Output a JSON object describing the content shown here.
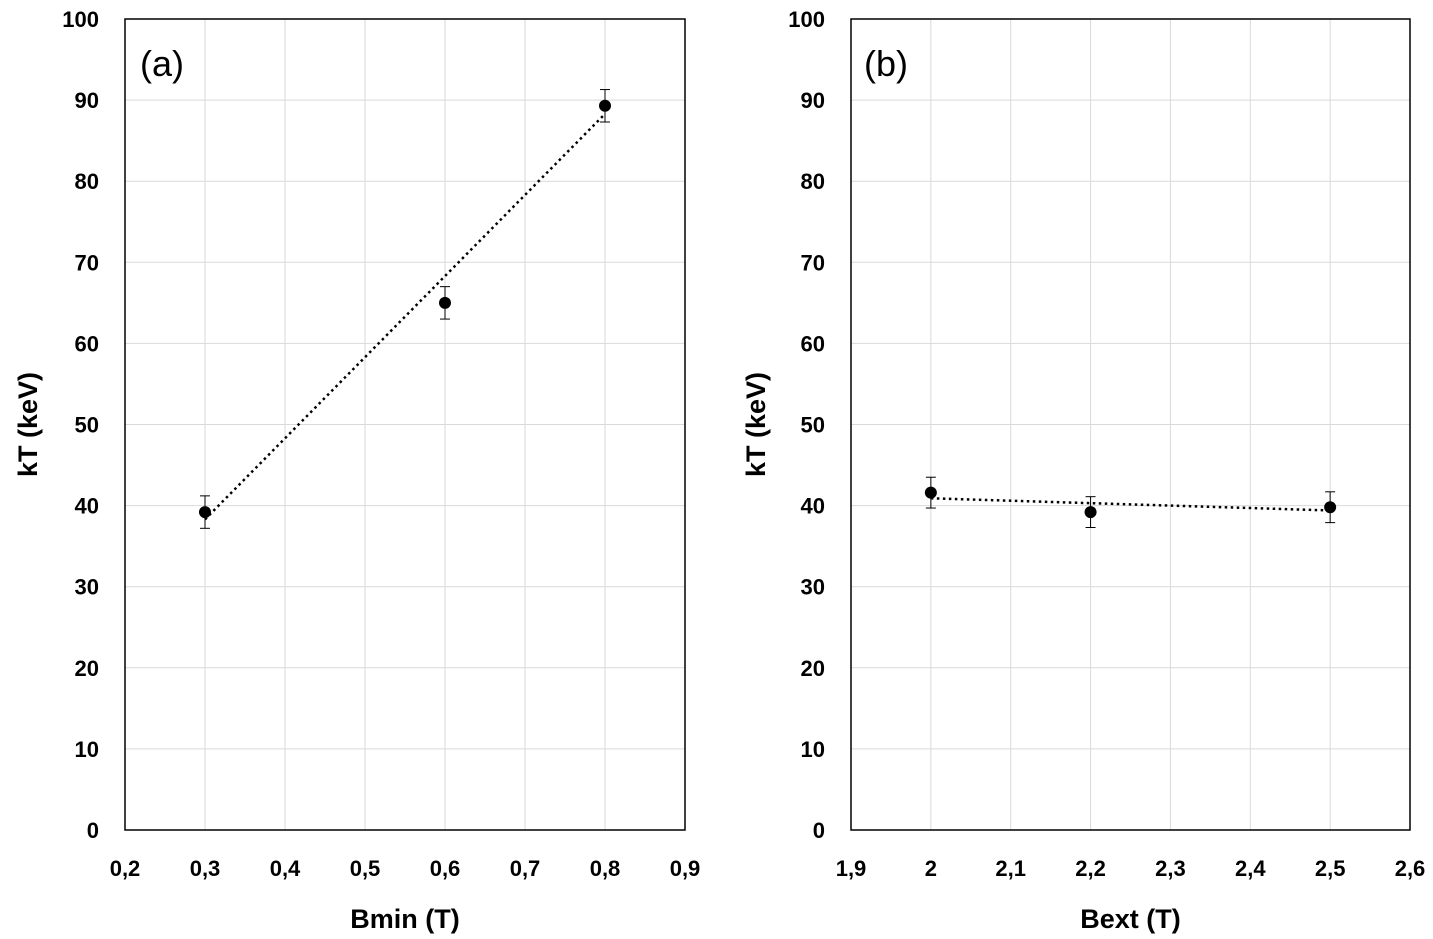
{
  "chart_data": [
    {
      "type": "scatter",
      "panel_label": "(a)",
      "xlabel": "Bmin (T)",
      "ylabel": "kT (keV)",
      "xlim": [
        0.2,
        0.9
      ],
      "ylim": [
        0,
        100
      ],
      "x_ticks": [
        "0,2",
        "0,3",
        "0,4",
        "0,5",
        "0,6",
        "0,7",
        "0,8",
        "0,9"
      ],
      "y_ticks": [
        "0",
        "10",
        "20",
        "30",
        "40",
        "50",
        "60",
        "70",
        "80",
        "90",
        "100"
      ],
      "grid": true,
      "series": [
        {
          "name": "kT",
          "x": [
            0.3,
            0.6,
            0.8
          ],
          "y": [
            39.2,
            65.0,
            89.3
          ],
          "yerr": [
            2.0,
            2.0,
            2.0
          ]
        }
      ],
      "trendline": {
        "style": "dotted",
        "x": [
          0.3,
          0.8
        ],
        "y": [
          38.3,
          88.3
        ]
      }
    },
    {
      "type": "scatter",
      "panel_label": "(b)",
      "xlabel": "Bext (T)",
      "ylabel": "kT (keV)",
      "xlim": [
        1.9,
        2.6
      ],
      "ylim": [
        0,
        100
      ],
      "x_ticks": [
        "1,9",
        "2",
        "2,1",
        "2,2",
        "2,3",
        "2,4",
        "2,5",
        "2,6"
      ],
      "y_ticks": [
        "0",
        "10",
        "20",
        "30",
        "40",
        "50",
        "60",
        "70",
        "80",
        "90",
        "100"
      ],
      "grid": true,
      "series": [
        {
          "name": "kT",
          "x": [
            2.0,
            2.2,
            2.5
          ],
          "y": [
            41.6,
            39.2,
            39.8
          ],
          "yerr": [
            1.9,
            1.9,
            1.9
          ]
        }
      ],
      "trendline": {
        "style": "dotted",
        "x": [
          2.0,
          2.5
        ],
        "y": [
          40.9,
          39.4
        ]
      }
    }
  ]
}
